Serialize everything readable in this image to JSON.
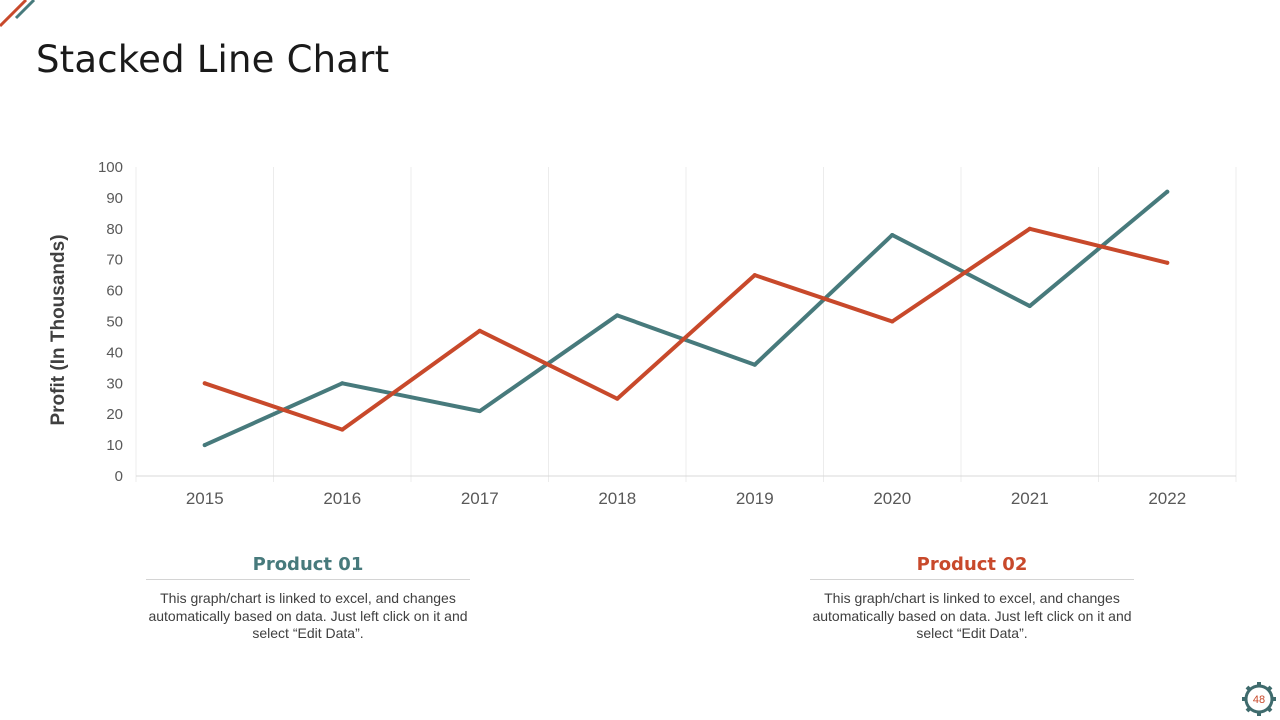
{
  "slide": {
    "title": "Stacked Line Chart",
    "page_number": "48"
  },
  "colors": {
    "product1": "#477a7c",
    "product2": "#c8492b",
    "grid": "#ececec",
    "badge": "#3f6b6d"
  },
  "chart_data": {
    "type": "line",
    "title": "",
    "xlabel": "",
    "ylabel": "Profit (In Thousands)",
    "categories": [
      "2015",
      "2016",
      "2017",
      "2018",
      "2019",
      "2020",
      "2021",
      "2022"
    ],
    "ylim": [
      0,
      100
    ],
    "yticks": [
      0,
      10,
      20,
      30,
      40,
      50,
      60,
      70,
      80,
      90,
      100
    ],
    "grid": "vertical",
    "series": [
      {
        "name": "Product 01",
        "color": "#477a7c",
        "values": [
          10,
          30,
          21,
          52,
          36,
          78,
          55,
          92
        ]
      },
      {
        "name": "Product 02",
        "color": "#c8492b",
        "values": [
          30,
          15,
          47,
          25,
          65,
          50,
          80,
          69
        ]
      }
    ]
  },
  "products": [
    {
      "title": "Product 01",
      "description": "This graph/chart is linked to excel, and changes automatically based on data. Just left click on it and select “Edit Data”."
    },
    {
      "title": "Product 02",
      "description": "This graph/chart is linked to excel, and changes automatically based on data. Just left click on it and select “Edit Data”."
    }
  ]
}
